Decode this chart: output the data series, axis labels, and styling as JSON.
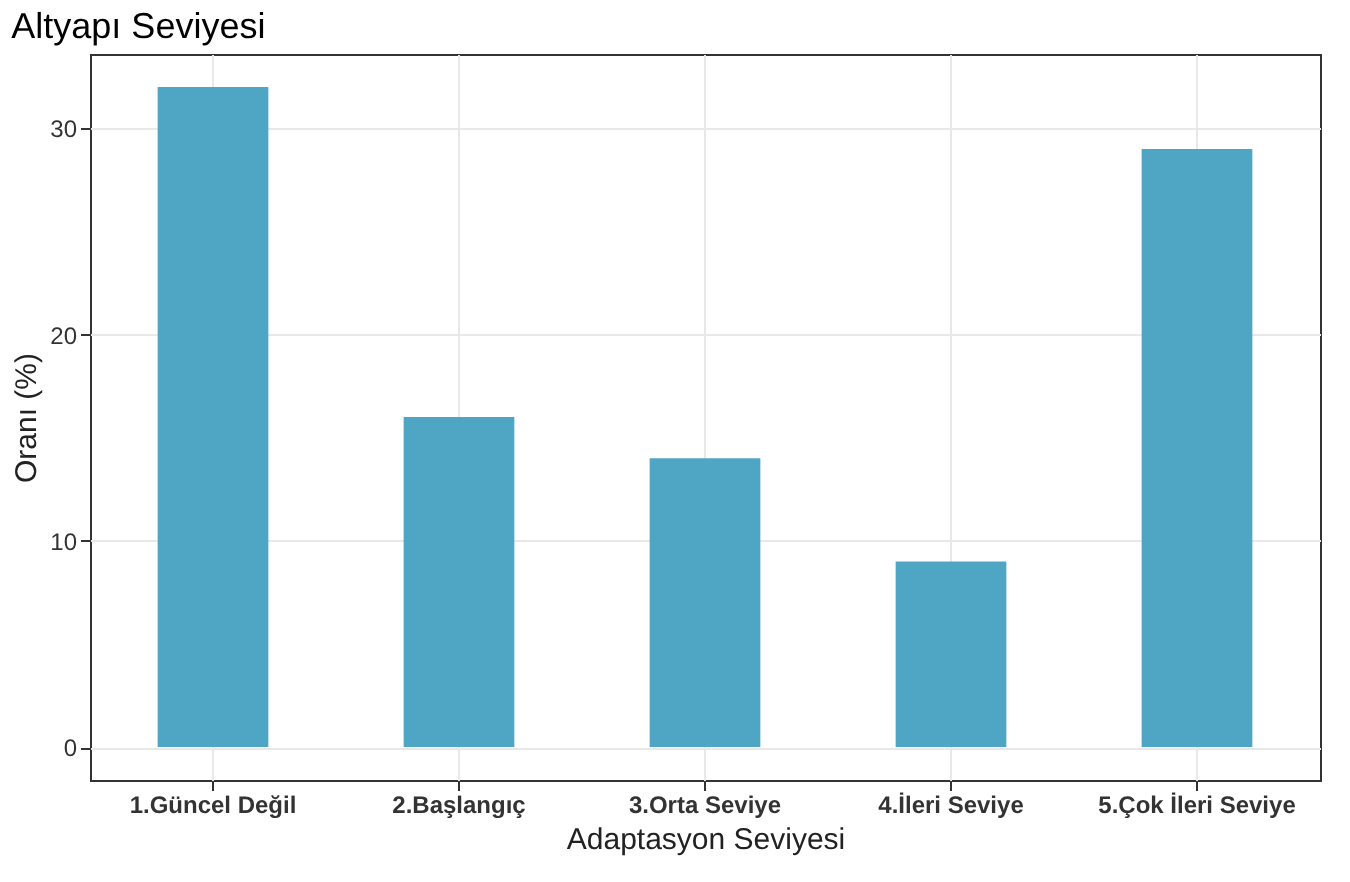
{
  "chart_data": {
    "type": "bar",
    "title": "Altyapı Seviyesi",
    "xlabel": "Adaptasyon Seviyesi",
    "ylabel": "Oranı (%)",
    "categories": [
      "1.Güncel Değil",
      "2.Başlangıç",
      "3.Orta Seviye",
      "4.İleri Seviye",
      "5.Çok İleri Seviye"
    ],
    "values": [
      32,
      16,
      14,
      9,
      29
    ],
    "color": "#4fa5c4",
    "ylim": [
      -1.6,
      33.6
    ],
    "yticks": [
      0,
      10,
      20,
      30
    ],
    "grid": true
  }
}
